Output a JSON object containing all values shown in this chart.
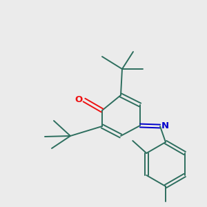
{
  "bg_color": "#ebebeb",
  "bond_color": "#2d6e5e",
  "o_color": "#ee1111",
  "n_color": "#0000cc",
  "line_width": 1.4,
  "fig_size": [
    3.0,
    3.0
  ],
  "dpi": 100
}
